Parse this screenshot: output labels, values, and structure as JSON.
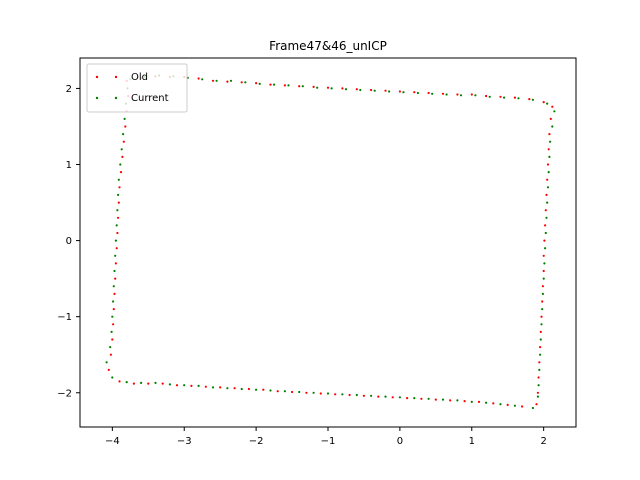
{
  "chart_data": {
    "type": "scatter",
    "title": "Frame47&46_unICP",
    "xlabel": "",
    "ylabel": "",
    "xlim": [
      -4.45,
      2.45
    ],
    "ylim": [
      -2.45,
      2.4
    ],
    "xticks": [
      -4,
      -3,
      -2,
      -1,
      0,
      1,
      2
    ],
    "yticks": [
      -2,
      -1,
      0,
      1,
      2
    ],
    "xtick_labels": [
      "−4",
      "−3",
      "−2",
      "−1",
      "0",
      "1",
      "2"
    ],
    "ytick_labels": [
      "−2",
      "−1",
      "0",
      "1",
      "2"
    ],
    "grid": false,
    "legend_position": "top-left",
    "series": [
      {
        "name": "Old",
        "color": "#ff0000",
        "points": [
          [
            -3.8,
            2.1
          ],
          [
            -3.6,
            2.14
          ],
          [
            -3.4,
            2.16
          ],
          [
            -3.2,
            2.15
          ],
          [
            -3.0,
            2.15
          ],
          [
            -2.8,
            2.13
          ],
          [
            -2.6,
            2.1
          ],
          [
            -2.4,
            2.09
          ],
          [
            -2.2,
            2.08
          ],
          [
            -2.0,
            2.07
          ],
          [
            -1.8,
            2.05
          ],
          [
            -1.6,
            2.04
          ],
          [
            -1.4,
            2.03
          ],
          [
            -1.2,
            2.02
          ],
          [
            -1.0,
            2.01
          ],
          [
            -0.8,
            2.0
          ],
          [
            -0.6,
            1.99
          ],
          [
            -0.4,
            1.98
          ],
          [
            -0.2,
            1.97
          ],
          [
            0.0,
            1.96
          ],
          [
            0.2,
            1.95
          ],
          [
            0.4,
            1.94
          ],
          [
            0.6,
            1.93
          ],
          [
            0.8,
            1.92
          ],
          [
            1.0,
            1.92
          ],
          [
            1.2,
            1.9
          ],
          [
            1.4,
            1.89
          ],
          [
            1.6,
            1.88
          ],
          [
            1.8,
            1.86
          ],
          [
            2.0,
            1.82
          ],
          [
            2.12,
            1.76
          ],
          [
            2.1,
            1.6
          ],
          [
            2.08,
            1.4
          ],
          [
            2.07,
            1.2
          ],
          [
            2.06,
            1.0
          ],
          [
            2.05,
            0.8
          ],
          [
            2.04,
            0.6
          ],
          [
            2.03,
            0.4
          ],
          [
            2.02,
            0.2
          ],
          [
            2.01,
            0.0
          ],
          [
            2.0,
            -0.2
          ],
          [
            2.0,
            -0.4
          ],
          [
            1.99,
            -0.6
          ],
          [
            1.98,
            -0.8
          ],
          [
            1.97,
            -1.0
          ],
          [
            1.96,
            -1.2
          ],
          [
            1.95,
            -1.4
          ],
          [
            1.94,
            -1.6
          ],
          [
            1.93,
            -1.8
          ],
          [
            1.92,
            -2.0
          ],
          [
            1.9,
            -2.15
          ],
          [
            1.7,
            -2.18
          ],
          [
            1.5,
            -2.16
          ],
          [
            1.3,
            -2.14
          ],
          [
            1.1,
            -2.12
          ],
          [
            0.9,
            -2.11
          ],
          [
            0.7,
            -2.1
          ],
          [
            0.5,
            -2.09
          ],
          [
            0.3,
            -2.08
          ],
          [
            0.1,
            -2.07
          ],
          [
            -0.1,
            -2.06
          ],
          [
            -0.3,
            -2.05
          ],
          [
            -0.5,
            -2.04
          ],
          [
            -0.7,
            -2.03
          ],
          [
            -0.9,
            -2.02
          ],
          [
            -1.1,
            -2.01
          ],
          [
            -1.3,
            -2.0
          ],
          [
            -1.5,
            -1.99
          ],
          [
            -1.7,
            -1.98
          ],
          [
            -1.9,
            -1.96
          ],
          [
            -2.1,
            -1.95
          ],
          [
            -2.3,
            -1.94
          ],
          [
            -2.5,
            -1.93
          ],
          [
            -2.7,
            -1.92
          ],
          [
            -2.9,
            -1.91
          ],
          [
            -3.1,
            -1.9
          ],
          [
            -3.3,
            -1.88
          ],
          [
            -3.5,
            -1.88
          ],
          [
            -3.7,
            -1.88
          ],
          [
            -3.9,
            -1.85
          ],
          [
            -4.05,
            -1.7
          ],
          [
            -4.02,
            -1.5
          ],
          [
            -4.0,
            -1.3
          ],
          [
            -3.99,
            -1.1
          ],
          [
            -3.98,
            -0.9
          ],
          [
            -3.97,
            -0.7
          ],
          [
            -3.96,
            -0.5
          ],
          [
            -3.95,
            -0.3
          ],
          [
            -3.94,
            -0.1
          ],
          [
            -3.93,
            0.1
          ],
          [
            -3.92,
            0.3
          ],
          [
            -3.91,
            0.5
          ],
          [
            -3.9,
            0.7
          ],
          [
            -3.88,
            0.9
          ],
          [
            -3.86,
            1.1
          ],
          [
            -3.84,
            1.3
          ],
          [
            -3.82,
            1.5
          ],
          [
            -3.8,
            1.7
          ],
          [
            -3.78,
            1.9
          ]
        ]
      },
      {
        "name": "Current",
        "color": "#008000",
        "points": [
          [
            -3.75,
            2.12
          ],
          [
            -3.55,
            2.15
          ],
          [
            -3.35,
            2.17
          ],
          [
            -3.15,
            2.16
          ],
          [
            -2.95,
            2.14
          ],
          [
            -2.75,
            2.12
          ],
          [
            -2.55,
            2.1
          ],
          [
            -2.35,
            2.1
          ],
          [
            -2.15,
            2.08
          ],
          [
            -1.95,
            2.06
          ],
          [
            -1.75,
            2.05
          ],
          [
            -1.55,
            2.04
          ],
          [
            -1.35,
            2.03
          ],
          [
            -1.15,
            2.01
          ],
          [
            -0.95,
            2.0
          ],
          [
            -0.75,
            1.99
          ],
          [
            -0.55,
            1.98
          ],
          [
            -0.35,
            1.97
          ],
          [
            -0.15,
            1.96
          ],
          [
            0.05,
            1.95
          ],
          [
            0.25,
            1.94
          ],
          [
            0.45,
            1.93
          ],
          [
            0.65,
            1.92
          ],
          [
            0.85,
            1.91
          ],
          [
            1.05,
            1.91
          ],
          [
            1.25,
            1.89
          ],
          [
            1.45,
            1.88
          ],
          [
            1.65,
            1.87
          ],
          [
            1.85,
            1.85
          ],
          [
            2.05,
            1.8
          ],
          [
            2.15,
            1.7
          ],
          [
            2.12,
            1.5
          ],
          [
            2.09,
            1.3
          ],
          [
            2.08,
            1.1
          ],
          [
            2.07,
            0.9
          ],
          [
            2.06,
            0.7
          ],
          [
            2.05,
            0.5
          ],
          [
            2.04,
            0.3
          ],
          [
            2.03,
            0.1
          ],
          [
            2.02,
            -0.1
          ],
          [
            2.01,
            -0.3
          ],
          [
            2.0,
            -0.5
          ],
          [
            1.99,
            -0.7
          ],
          [
            1.98,
            -0.9
          ],
          [
            1.97,
            -1.1
          ],
          [
            1.96,
            -1.3
          ],
          [
            1.95,
            -1.5
          ],
          [
            1.94,
            -1.7
          ],
          [
            1.93,
            -1.9
          ],
          [
            1.92,
            -2.05
          ],
          [
            1.85,
            -2.2
          ],
          [
            1.6,
            -2.17
          ],
          [
            1.4,
            -2.15
          ],
          [
            1.2,
            -2.13
          ],
          [
            1.0,
            -2.12
          ],
          [
            0.8,
            -2.1
          ],
          [
            0.6,
            -2.09
          ],
          [
            0.4,
            -2.08
          ],
          [
            0.2,
            -2.07
          ],
          [
            0.0,
            -2.06
          ],
          [
            -0.2,
            -2.05
          ],
          [
            -0.4,
            -2.04
          ],
          [
            -0.6,
            -2.03
          ],
          [
            -0.8,
            -2.02
          ],
          [
            -1.0,
            -2.01
          ],
          [
            -1.2,
            -2.0
          ],
          [
            -1.4,
            -1.99
          ],
          [
            -1.6,
            -1.98
          ],
          [
            -1.8,
            -1.97
          ],
          [
            -2.0,
            -1.96
          ],
          [
            -2.2,
            -1.95
          ],
          [
            -2.4,
            -1.94
          ],
          [
            -2.6,
            -1.93
          ],
          [
            -2.8,
            -1.91
          ],
          [
            -3.0,
            -1.9
          ],
          [
            -3.2,
            -1.89
          ],
          [
            -3.4,
            -1.87
          ],
          [
            -3.6,
            -1.87
          ],
          [
            -3.8,
            -1.86
          ],
          [
            -4.0,
            -1.8
          ],
          [
            -4.08,
            -1.6
          ],
          [
            -4.03,
            -1.4
          ],
          [
            -4.01,
            -1.2
          ],
          [
            -4.0,
            -1.0
          ],
          [
            -3.99,
            -0.8
          ],
          [
            -3.98,
            -0.6
          ],
          [
            -3.97,
            -0.4
          ],
          [
            -3.96,
            -0.2
          ],
          [
            -3.95,
            0.0
          ],
          [
            -3.94,
            0.2
          ],
          [
            -3.93,
            0.4
          ],
          [
            -3.92,
            0.6
          ],
          [
            -3.91,
            0.8
          ],
          [
            -3.89,
            1.0
          ],
          [
            -3.87,
            1.2
          ],
          [
            -3.85,
            1.4
          ],
          [
            -3.83,
            1.6
          ],
          [
            -3.81,
            1.8
          ],
          [
            -3.79,
            2.0
          ]
        ]
      }
    ]
  }
}
